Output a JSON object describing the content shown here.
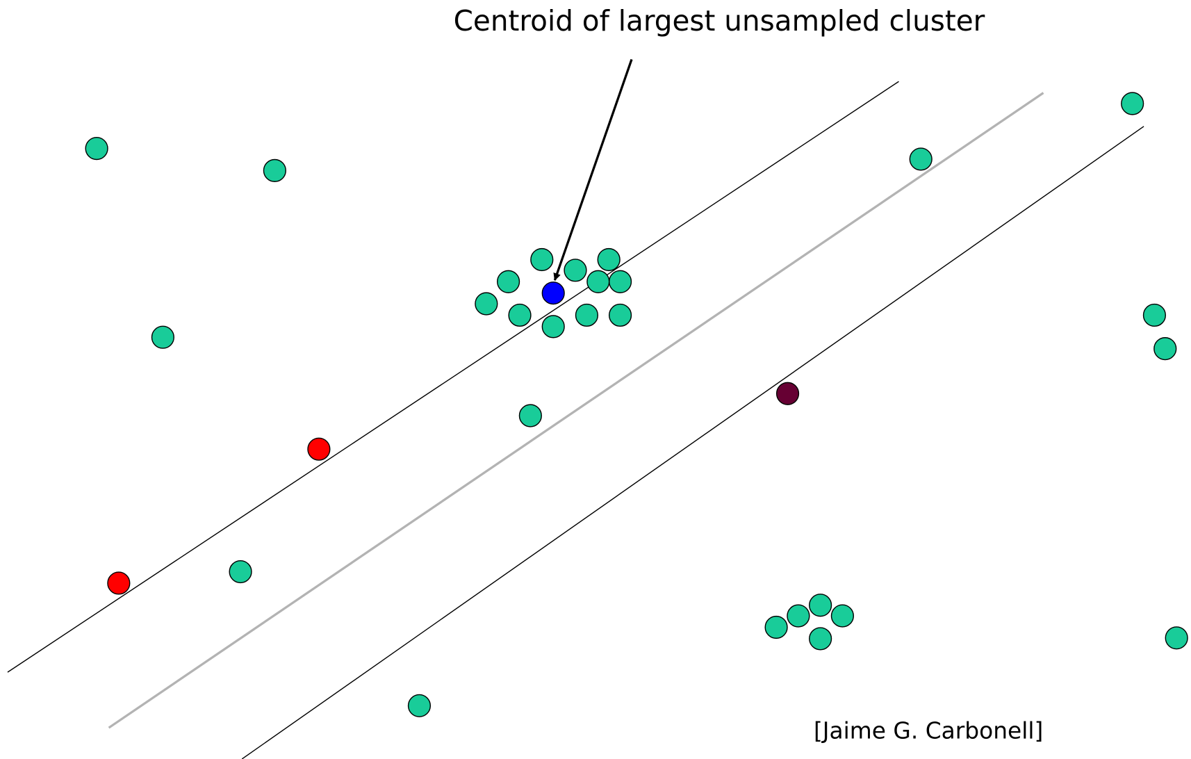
{
  "annotation": "Centroid of largest unsampled cluster",
  "credit": "[Jaime G. Carbonell]"
}
